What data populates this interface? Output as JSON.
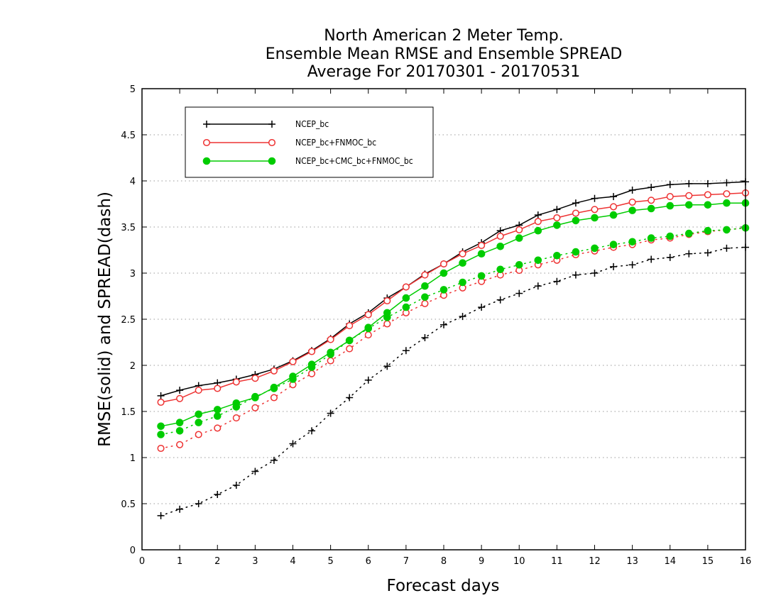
{
  "chart_data": {
    "type": "line",
    "title": [
      "North American 2 Meter Temp.",
      "Ensemble Mean RMSE and Ensemble SPREAD",
      "Average For 20170301 - 20170531"
    ],
    "xlabel": "Forecast days",
    "ylabel": "RMSE(solid) and SPREAD(dash)",
    "xlim": [
      0,
      16
    ],
    "ylim": [
      0,
      5
    ],
    "xticks": [
      "0",
      "1",
      "2",
      "3",
      "4",
      "5",
      "6",
      "7",
      "8",
      "9",
      "10",
      "11",
      "12",
      "13",
      "14",
      "15",
      "16"
    ],
    "yticks": [
      "0",
      "0.5",
      "1",
      "1.5",
      "2",
      "2.5",
      "3",
      "3.5",
      "4",
      "4.5",
      "5"
    ],
    "grid": "horizontal dotted",
    "legend_position": "top-left",
    "x": [
      0.5,
      1,
      1.5,
      2,
      2.5,
      3,
      3.5,
      4,
      4.5,
      5,
      5.5,
      6,
      6.5,
      7,
      7.5,
      8,
      8.5,
      9,
      9.5,
      10,
      10.5,
      11,
      11.5,
      12,
      12.5,
      13,
      13.5,
      14,
      14.5,
      15,
      15.5,
      16
    ],
    "series": [
      {
        "name": "NCEP_bc",
        "color": "#000000",
        "marker": "plus",
        "rmse": [
          1.67,
          1.73,
          1.78,
          1.81,
          1.85,
          1.9,
          1.96,
          2.05,
          2.16,
          2.29,
          2.45,
          2.57,
          2.73,
          2.85,
          2.99,
          3.1,
          3.23,
          3.33,
          3.46,
          3.52,
          3.63,
          3.69,
          3.76,
          3.81,
          3.83,
          3.9,
          3.93,
          3.96,
          3.97,
          3.97,
          3.98,
          3.99
        ],
        "spread": [
          0.37,
          0.44,
          0.5,
          0.6,
          0.7,
          0.85,
          0.97,
          1.15,
          1.29,
          1.48,
          1.65,
          1.84,
          1.99,
          2.16,
          2.3,
          2.44,
          2.53,
          2.63,
          2.71,
          2.78,
          2.86,
          2.91,
          2.98,
          3.0,
          3.07,
          3.09,
          3.15,
          3.17,
          3.21,
          3.22,
          3.27,
          3.28
        ]
      },
      {
        "name": "NCEP_bc+FNMOC_bc",
        "color": "#ee3333",
        "marker": "open-circle",
        "rmse": [
          1.6,
          1.64,
          1.73,
          1.75,
          1.82,
          1.86,
          1.94,
          2.04,
          2.15,
          2.28,
          2.43,
          2.55,
          2.7,
          2.85,
          2.98,
          3.1,
          3.21,
          3.3,
          3.4,
          3.47,
          3.56,
          3.6,
          3.65,
          3.69,
          3.72,
          3.77,
          3.79,
          3.83,
          3.84,
          3.85,
          3.86,
          3.87
        ],
        "spread": [
          1.1,
          1.14,
          1.25,
          1.32,
          1.43,
          1.54,
          1.65,
          1.79,
          1.91,
          2.05,
          2.18,
          2.33,
          2.45,
          2.57,
          2.67,
          2.76,
          2.84,
          2.91,
          2.98,
          3.03,
          3.09,
          3.14,
          3.2,
          3.24,
          3.28,
          3.31,
          3.36,
          3.38,
          3.42,
          3.45,
          3.47,
          3.49
        ]
      },
      {
        "name": "NCEP_bc+CMC_bc+FNMOC_bc",
        "color": "#00cc00",
        "marker": "filled-circle",
        "rmse": [
          1.34,
          1.38,
          1.47,
          1.52,
          1.59,
          1.65,
          1.76,
          1.88,
          2.01,
          2.14,
          2.27,
          2.41,
          2.57,
          2.73,
          2.86,
          3.0,
          3.11,
          3.21,
          3.29,
          3.38,
          3.46,
          3.52,
          3.57,
          3.6,
          3.63,
          3.68,
          3.7,
          3.73,
          3.74,
          3.74,
          3.76,
          3.76
        ],
        "spread": [
          1.25,
          1.29,
          1.38,
          1.45,
          1.55,
          1.66,
          1.75,
          1.85,
          1.98,
          2.12,
          2.27,
          2.4,
          2.52,
          2.63,
          2.74,
          2.82,
          2.9,
          2.97,
          3.04,
          3.09,
          3.14,
          3.19,
          3.23,
          3.27,
          3.31,
          3.34,
          3.38,
          3.4,
          3.43,
          3.46,
          3.47,
          3.49
        ]
      }
    ]
  }
}
